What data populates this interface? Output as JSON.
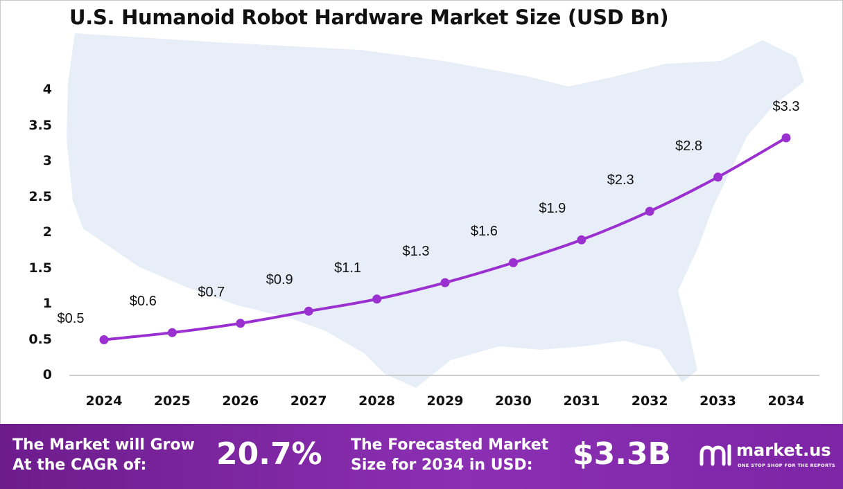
{
  "colors": {
    "line": "#9b30d0",
    "marker": "#9b30d0",
    "footer": "#7a22a3",
    "map": "#e8eef8"
  },
  "chart_data": {
    "type": "line",
    "title": "U.S. Humanoid Robot Hardware Market Size (USD Bn)",
    "categories": [
      "2024",
      "2025",
      "2026",
      "2027",
      "2028",
      "2029",
      "2030",
      "2031",
      "2032",
      "2033",
      "2034"
    ],
    "series": [
      {
        "values": [
          0.5,
          0.6,
          0.73,
          0.9,
          1.07,
          1.3,
          1.58,
          1.9,
          2.3,
          2.78,
          3.33
        ]
      }
    ],
    "data_labels": [
      "$0.5",
      "$0.6",
      "$0.7",
      "$0.9",
      "$1.1",
      "$1.3",
      "$1.6",
      "$1.9",
      "$2.3",
      "$2.8",
      "$3.3"
    ],
    "y_ticks": [
      "0",
      "0.5",
      "1",
      "1.5",
      "2",
      "2.5",
      "3",
      "3.5",
      "4"
    ],
    "ylim": [
      0,
      4
    ],
    "grid": false,
    "legend": "none"
  },
  "footer": {
    "cagr_label": "The Market will Grow\nAt the CAGR of:",
    "cagr_value": "20.7%",
    "forecast_label": "The Forecasted Market\nSize for 2034 in USD:",
    "forecast_value": "$3.3B",
    "brand_name": "market.us",
    "brand_tagline": "ONE STOP SHOP FOR THE REPORTS",
    "brand_icon": "market-us-logo-icon"
  }
}
